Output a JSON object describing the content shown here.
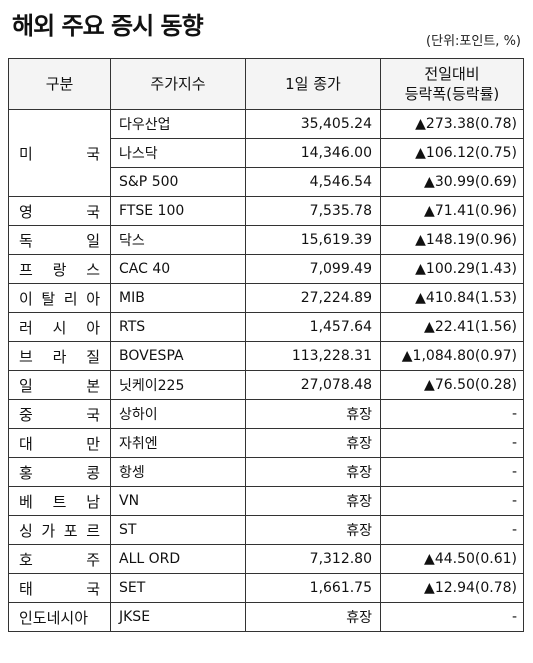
{
  "title": "해외 주요 증시 동향",
  "unit": "(단위:포인트, %)",
  "header": {
    "country": "구분",
    "index": "주가지수",
    "close": "1일 종가",
    "change_line1": "전일대비",
    "change_line2": "등락폭(등락률)"
  },
  "groups": [
    {
      "country": "미 국",
      "rows": [
        {
          "index": "다우산업",
          "close": "35,405.24",
          "change": "▲273.38(0.78)"
        },
        {
          "index": "나스닥",
          "close": "14,346.00",
          "change": "▲106.12(0.75)"
        },
        {
          "index": "S&P 500",
          "close": "4,546.54",
          "change": "▲30.99(0.69)"
        }
      ]
    },
    {
      "country": "영 국",
      "rows": [
        {
          "index": "FTSE 100",
          "close": "7,535.78",
          "change": "▲71.41(0.96)"
        }
      ]
    },
    {
      "country": "독 일",
      "rows": [
        {
          "index": "닥스",
          "close": "15,619.39",
          "change": "▲148.19(0.96)"
        }
      ]
    },
    {
      "country": "프 랑 스",
      "rows": [
        {
          "index": "CAC 40",
          "close": "7,099.49",
          "change": "▲100.29(1.43)"
        }
      ]
    },
    {
      "country": "이 탈 리 아",
      "rows": [
        {
          "index": "MIB",
          "close": "27,224.89",
          "change": "▲410.84(1.53)"
        }
      ]
    },
    {
      "country": "러 시 아",
      "rows": [
        {
          "index": "RTS",
          "close": "1,457.64",
          "change": "▲22.41(1.56)"
        }
      ]
    },
    {
      "country": "브 라 질",
      "rows": [
        {
          "index": "BOVESPA",
          "close": "113,228.31",
          "change": "▲1,084.80(0.97)"
        }
      ]
    },
    {
      "country": "일 본",
      "rows": [
        {
          "index": "닛케이225",
          "close": "27,078.48",
          "change": "▲76.50(0.28)"
        }
      ]
    },
    {
      "country": "중 국",
      "rows": [
        {
          "index": "상하이",
          "close": "휴장",
          "change": "-"
        }
      ]
    },
    {
      "country": "대 만",
      "rows": [
        {
          "index": "자취엔",
          "close": "휴장",
          "change": "-"
        }
      ]
    },
    {
      "country": "홍 콩",
      "rows": [
        {
          "index": "항셍",
          "close": "휴장",
          "change": "-"
        }
      ]
    },
    {
      "country": "베 트 남",
      "rows": [
        {
          "index": "VN",
          "close": "휴장",
          "change": "-"
        }
      ]
    },
    {
      "country": "싱 가 포 르",
      "rows": [
        {
          "index": "ST",
          "close": "휴장",
          "change": "-"
        }
      ]
    },
    {
      "country": "호 주",
      "rows": [
        {
          "index": "ALL ORD",
          "close": "7,312.80",
          "change": "▲44.50(0.61)"
        }
      ]
    },
    {
      "country": "태 국",
      "rows": [
        {
          "index": "SET",
          "close": "1,661.75",
          "change": "▲12.94(0.78)"
        }
      ]
    },
    {
      "country": "인도네시아",
      "rows": [
        {
          "index": "JKSE",
          "close": "휴장",
          "change": "-"
        }
      ]
    }
  ]
}
